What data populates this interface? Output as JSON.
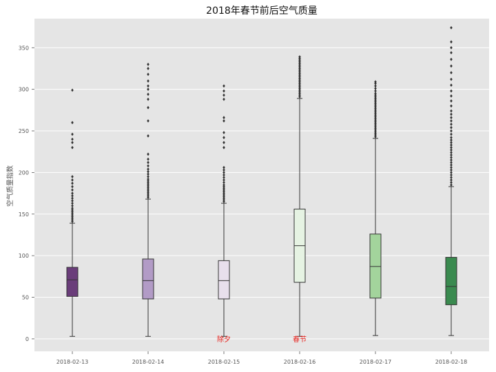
{
  "chart_data": {
    "type": "box",
    "title": "2018年春节前后空气质量",
    "xlabel": "",
    "ylabel": "空气质量指数",
    "ylim": [
      -15,
      385
    ],
    "yticks": [
      0,
      50,
      100,
      150,
      200,
      250,
      300,
      350
    ],
    "grid": true,
    "categories": [
      "2018-02-13",
      "2018-02-14",
      "2018-02-15",
      "2018-02-16",
      "2018-02-17",
      "2018-02-18"
    ],
    "boxes": [
      {
        "category": "2018-02-13",
        "whisker_low": 3,
        "q1": 51,
        "median": 71,
        "q3": 86,
        "whisker_high": 139,
        "color": "#6a3d7a",
        "outliers": [
          141,
          143,
          145,
          147,
          149,
          151,
          153,
          155,
          157,
          160,
          163,
          166,
          169,
          172,
          175,
          179,
          183,
          187,
          191,
          195,
          230,
          236,
          240,
          246,
          260,
          299
        ]
      },
      {
        "category": "2018-02-14",
        "whisker_low": 3,
        "q1": 48,
        "median": 70,
        "q3": 96,
        "whisker_high": 168,
        "color": "#b29bc6",
        "outliers": [
          170,
          172,
          174,
          176,
          178,
          180,
          182,
          184,
          186,
          188,
          190,
          192,
          195,
          198,
          201,
          204,
          208,
          212,
          216,
          222,
          244,
          262,
          278,
          288,
          294,
          300,
          304,
          310,
          318,
          325,
          330
        ]
      },
      {
        "category": "2018-02-15",
        "whisker_low": 3,
        "q1": 48,
        "median": 70,
        "q3": 94,
        "whisker_high": 163,
        "color": "#e8dfec",
        "outliers": [
          165,
          167,
          169,
          171,
          173,
          175,
          177,
          179,
          181,
          183,
          185,
          188,
          191,
          194,
          197,
          200,
          203,
          206,
          230,
          236,
          242,
          248,
          262,
          266,
          288,
          293,
          298,
          304
        ]
      },
      {
        "category": "2018-02-16",
        "whisker_low": 3,
        "q1": 68,
        "median": 112,
        "q3": 156,
        "whisker_high": 289,
        "color": "#e6f3e3",
        "outliers": [
          291,
          293,
          295,
          297,
          299,
          301,
          303,
          305,
          307,
          309,
          311,
          313,
          315,
          317,
          319,
          321,
          323,
          325,
          327,
          329,
          331,
          333,
          335,
          337,
          339
        ]
      },
      {
        "category": "2018-02-17",
        "whisker_low": 4,
        "q1": 49,
        "median": 87,
        "q3": 126,
        "whisker_high": 241,
        "color": "#a3d49c",
        "outliers": [
          243,
          245,
          247,
          249,
          251,
          253,
          255,
          257,
          259,
          261,
          263,
          265,
          267,
          269,
          271,
          273,
          275,
          277,
          279,
          281,
          283,
          285,
          287,
          289,
          291,
          293,
          295,
          298,
          301,
          304,
          307,
          309
        ]
      },
      {
        "category": "2018-02-18",
        "whisker_low": 4,
        "q1": 41,
        "median": 63,
        "q3": 98,
        "whisker_high": 183,
        "color": "#3a8a4f",
        "outliers": [
          185,
          188,
          191,
          194,
          197,
          200,
          203,
          206,
          209,
          212,
          215,
          218,
          221,
          224,
          227,
          230,
          233,
          236,
          239,
          242,
          246,
          250,
          254,
          258,
          262,
          266,
          270,
          274,
          280,
          286,
          292,
          298,
          305,
          312,
          320,
          328,
          336,
          344,
          350,
          357,
          374
        ]
      }
    ],
    "annotations": [
      {
        "text": "除夕",
        "x": "2018-02-15",
        "y": 0
      },
      {
        "text": "春节",
        "x": "2018-02-16",
        "y": 0
      }
    ]
  }
}
